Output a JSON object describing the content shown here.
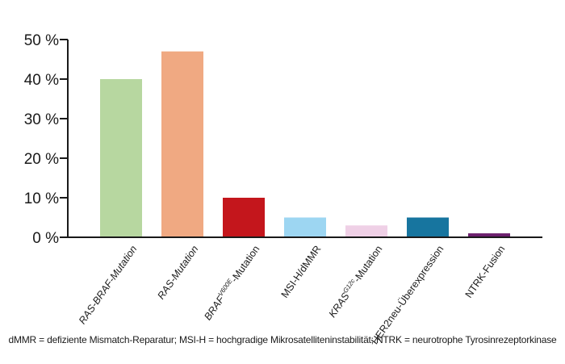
{
  "chart_data": {
    "type": "bar",
    "categories": [
      {
        "base": "RAS-BRAF-Mutation",
        "sup": "",
        "tail": "",
        "italic": true
      },
      {
        "base": "RAS-Mutation",
        "sup": "",
        "tail": "",
        "italic": true
      },
      {
        "base": "BRAF",
        "sup": "V600E",
        "tail": "-Mutation",
        "italic": true
      },
      {
        "base": "MSI-H/dMMR",
        "sup": "",
        "tail": "",
        "italic": false
      },
      {
        "base": "KRAS",
        "sup": "G12c",
        "tail": "-Mutation",
        "italic": true
      },
      {
        "base": "HER2neu-Überexpression",
        "sup": "",
        "tail": "",
        "italic": false
      },
      {
        "base": "NTRK-Fusion",
        "sup": "",
        "tail": "",
        "italic": false
      }
    ],
    "values": [
      40,
      47,
      10,
      5,
      3,
      5,
      1
    ],
    "colors": [
      "#b7d7a0",
      "#f0a982",
      "#c4161c",
      "#9dd6f2",
      "#efd0e6",
      "#17759f",
      "#6b1f6d"
    ],
    "ylim": [
      0,
      50
    ],
    "yticks": [
      0,
      10,
      20,
      30,
      40,
      50
    ],
    "ytick_suffix": " %",
    "title": "",
    "xlabel": "",
    "ylabel": "",
    "grid": false,
    "legend": "none"
  },
  "footnote": "dMMR = defiziente Mismatch-Reparatur; MSI-H = hochgradige Mikrosatelliteninstabilität; NTRK = neurotrophe Tyrosinrezeptorkinase"
}
